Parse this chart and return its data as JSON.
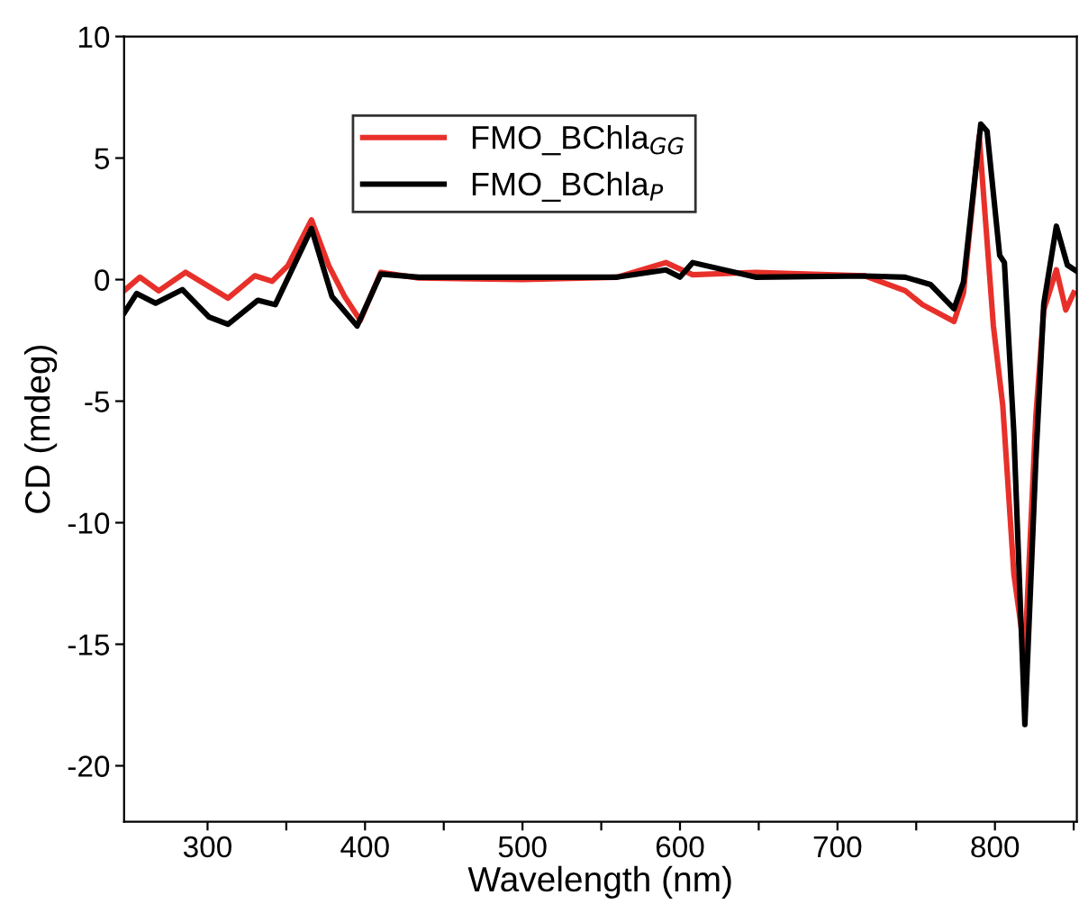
{
  "chart_data": {
    "type": "line",
    "xlabel": "Wavelength (nm)",
    "ylabel": "CD (mdeg)",
    "xlim": [
      247,
      852
    ],
    "ylim": [
      -22.3,
      10
    ],
    "xticks": [
      300,
      {
        "value": 350,
        "label": null
      },
      400,
      {
        "value": 450,
        "label": null
      },
      500,
      {
        "value": 550,
        "label": null
      },
      600,
      {
        "value": 650,
        "label": null
      },
      700,
      {
        "value": 750,
        "label": null
      },
      800,
      {
        "value": 850,
        "label": null
      }
    ],
    "yticks": [
      -20,
      -15,
      -10,
      -5,
      0,
      5,
      10
    ],
    "grid": false,
    "legend": "top center",
    "marker": "none",
    "line_style": "solid",
    "series": [
      {
        "name": "FMO_BChla$_{GG}$",
        "color": "#e8302a",
        "x": [
          247,
          257,
          269,
          286,
          313,
          330,
          341,
          351,
          366,
          377,
          387,
          397,
          410,
          434,
          500,
          560,
          591,
          608,
          648,
          717,
          743,
          754,
          774,
          780,
          790,
          799,
          805,
          812,
          819,
          826,
          831,
          839,
          845,
          850
        ],
        "values": [
          -0.46,
          0.1,
          -0.46,
          0.3,
          -0.76,
          0.16,
          -0.07,
          0.57,
          2.46,
          0.57,
          -0.69,
          -1.68,
          0.3,
          0.07,
          0.0,
          0.1,
          0.7,
          0.2,
          0.3,
          0.16,
          -0.46,
          -1.03,
          -1.72,
          -0.55,
          5.9,
          -1.9,
          -5.2,
          -12.1,
          -15.4,
          -5.6,
          -1.25,
          0.4,
          -1.25,
          -0.55
        ]
      },
      {
        "name": "FMO_BChla$_{P}$",
        "color": "#000000",
        "x": [
          247,
          255,
          267,
          284,
          301,
          313,
          332,
          343,
          366,
          379,
          395,
          410,
          434,
          500,
          560,
          591,
          600,
          608,
          648,
          717,
          743,
          759,
          774,
          780,
          791,
          795,
          803,
          806,
          812,
          819,
          826,
          831,
          839,
          846,
          852
        ],
        "values": [
          -1.38,
          -0.57,
          -0.97,
          -0.41,
          -1.54,
          -1.84,
          -0.85,
          -1.03,
          2.1,
          -0.69,
          -1.91,
          0.23,
          0.1,
          0.1,
          0.1,
          0.4,
          0.1,
          0.7,
          0.1,
          0.15,
          0.1,
          -0.2,
          -1.2,
          -0.1,
          6.4,
          6.1,
          1.0,
          0.7,
          -6.3,
          -18.3,
          -7.4,
          -1.0,
          2.2,
          0.6,
          0.34
        ]
      }
    ]
  }
}
